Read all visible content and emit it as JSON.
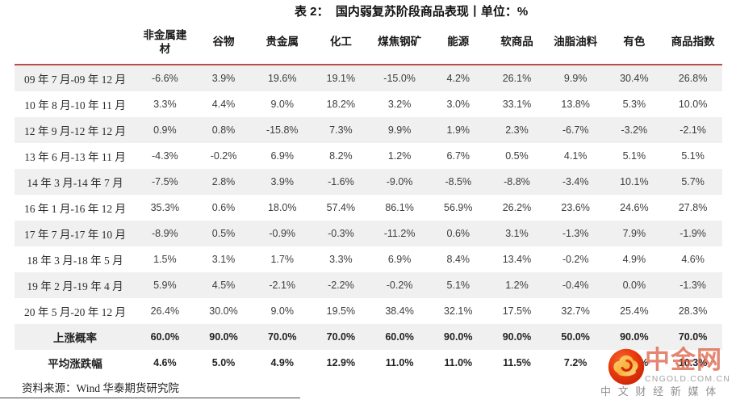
{
  "title": "表 2：  国内弱复苏阶段商品表现丨单位：%",
  "table": {
    "columns": [
      "非金属建材",
      "谷物",
      "贵金属",
      "化工",
      "煤焦钢矿",
      "能源",
      "软商品",
      "油脂油料",
      "有色",
      "商品指数"
    ],
    "rows": [
      {
        "label": "09 年 7 月-09 年 12 月",
        "bold": false,
        "values": [
          "-6.6%",
          "3.9%",
          "19.6%",
          "19.1%",
          "-15.0%",
          "4.2%",
          "26.1%",
          "9.9%",
          "30.4%",
          "26.8%"
        ]
      },
      {
        "label": "10 年 8 月-10 年 11 月",
        "bold": false,
        "values": [
          "3.3%",
          "4.4%",
          "9.0%",
          "18.2%",
          "3.2%",
          "3.0%",
          "33.1%",
          "13.8%",
          "5.3%",
          "10.0%"
        ]
      },
      {
        "label": "12 年 9 月-12 年 12 月",
        "bold": false,
        "values": [
          "0.9%",
          "0.8%",
          "-15.8%",
          "7.3%",
          "9.9%",
          "1.9%",
          "2.3%",
          "-6.7%",
          "-3.2%",
          "-2.1%"
        ]
      },
      {
        "label": "13 年 6 月-13 年 11 月",
        "bold": false,
        "values": [
          "-4.3%",
          "-0.2%",
          "6.9%",
          "8.2%",
          "1.2%",
          "6.7%",
          "0.5%",
          "4.1%",
          "5.1%",
          "5.1%"
        ]
      },
      {
        "label": "14 年 3 月-14 年 7 月",
        "bold": false,
        "values": [
          "-7.5%",
          "2.8%",
          "3.9%",
          "-1.6%",
          "-9.0%",
          "-8.5%",
          "-8.8%",
          "-3.4%",
          "10.1%",
          "5.7%"
        ]
      },
      {
        "label": "16 年 1 月-16 年 12 月",
        "bold": false,
        "values": [
          "35.3%",
          "0.6%",
          "18.0%",
          "57.4%",
          "86.1%",
          "56.9%",
          "26.2%",
          "23.6%",
          "24.6%",
          "27.8%"
        ]
      },
      {
        "label": "17 年 7 月-17 年 10 月",
        "bold": false,
        "values": [
          "-8.9%",
          "0.5%",
          "-0.9%",
          "-0.3%",
          "-11.2%",
          "0.6%",
          "3.1%",
          "-1.3%",
          "7.9%",
          "-1.9%"
        ]
      },
      {
        "label": "18 年 3 月-18 年 5 月",
        "bold": false,
        "values": [
          "1.5%",
          "3.1%",
          "1.7%",
          "3.3%",
          "6.9%",
          "8.4%",
          "13.4%",
          "-0.2%",
          "4.9%",
          "4.6%"
        ]
      },
      {
        "label": "19 年 2 月-19 年 4 月",
        "bold": false,
        "values": [
          "5.9%",
          "4.5%",
          "-2.1%",
          "-2.2%",
          "-0.2%",
          "5.1%",
          "1.2%",
          "-0.4%",
          "0.0%",
          "-1.3%"
        ]
      },
      {
        "label": "20 年 5 月-20 年 12 月",
        "bold": false,
        "values": [
          "26.4%",
          "30.0%",
          "9.0%",
          "19.5%",
          "38.4%",
          "32.1%",
          "17.5%",
          "32.7%",
          "25.4%",
          "28.3%"
        ]
      },
      {
        "label": "上涨概率",
        "bold": true,
        "values": [
          "60.0%",
          "90.0%",
          "70.0%",
          "70.0%",
          "60.0%",
          "90.0%",
          "90.0%",
          "50.0%",
          "90.0%",
          "70.0%"
        ]
      },
      {
        "label": "平均涨跌幅",
        "bold": true,
        "values": [
          "4.6%",
          "5.0%",
          "4.9%",
          "12.9%",
          "11.0%",
          "11.0%",
          "11.5%",
          "7.2%",
          "11.1%",
          "10.3%"
        ]
      }
    ]
  },
  "footer": {
    "source": "资料来源：Wind 华泰期货研究院"
  },
  "watermark": {
    "brand": "中金网",
    "domain": "CNGOLD.COM.CN",
    "tagline": "中文财经新媒体"
  },
  "colors": {
    "header_rule": "#b8504a",
    "row_stripe": "#f0f0f0",
    "logo_red": "#e8380d",
    "logo_gold": "#f7b23c",
    "brand_red": "#d8583c"
  }
}
